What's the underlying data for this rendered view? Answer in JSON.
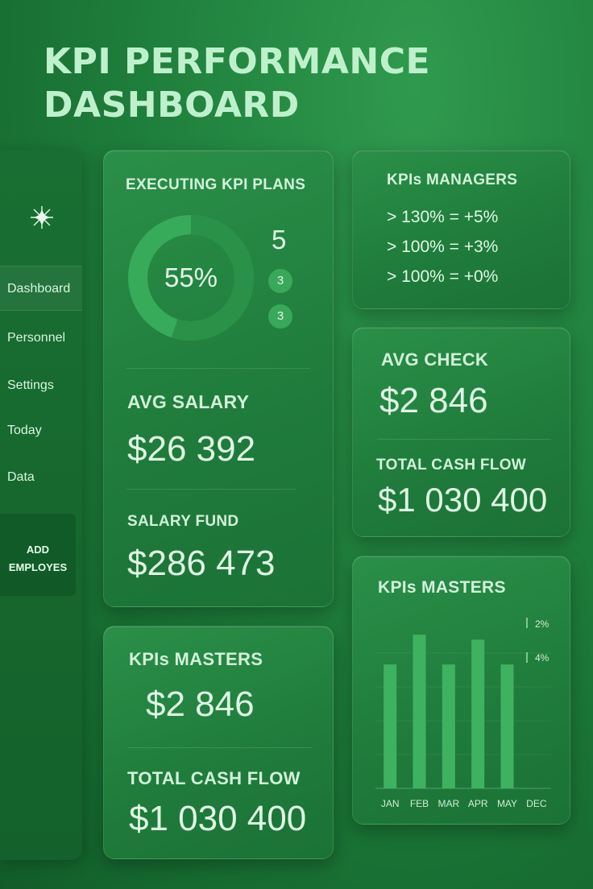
{
  "title_line1": "KPI PERFORMANCE",
  "title_line2": "DASHBOARD",
  "sidebar": {
    "items": [
      {
        "label": "Dashboard"
      },
      {
        "label": "Personnel"
      },
      {
        "label": "Settings"
      },
      {
        "label": "Today"
      },
      {
        "label": "Data"
      }
    ],
    "add_line1": "ADD",
    "add_line2": "EMPLOYES"
  },
  "executing": {
    "title": "EXECUTING KPI PLANS",
    "percent_label": "55%",
    "percent": 55,
    "count": "5",
    "badge1": "3",
    "badge2": "3"
  },
  "avg_salary": {
    "label": "AVG SALARY",
    "value": "$26 392"
  },
  "salary_fund": {
    "label": "SALARY FUND",
    "value": "$286 473"
  },
  "managers": {
    "title": "KPIs MANAGERS",
    "lines": [
      "> 130% = +5%",
      "> 100% = +3%",
      "> 100% = +0%"
    ]
  },
  "avg_check": {
    "label": "AVG CHECK",
    "value": "$2 846"
  },
  "total_cash_right": {
    "label": "TOTAL CASH FLOW",
    "value": "$1 030 400"
  },
  "masters_left": {
    "label": "KPIs MASTERS",
    "value": "$2 846"
  },
  "total_cash_left": {
    "label": "TOTAL CASH FLOW",
    "value": "$1 030 400"
  },
  "colors": {
    "bar": "#3fb261",
    "accent": "#bff0cc",
    "ring_filled": "#2e9a4f",
    "ring_track": "#3ab05e"
  },
  "chart_data": {
    "type": "bar",
    "title": "KPIs MASTERS",
    "categories": [
      "JAN",
      "FEB",
      "MAR",
      "APR",
      "MAY",
      "DEC"
    ],
    "values": [
      1.0,
      1.24,
      1.0,
      1.2,
      1.0,
      null
    ],
    "annotations": [
      "2%",
      "4%"
    ],
    "grid": true
  }
}
